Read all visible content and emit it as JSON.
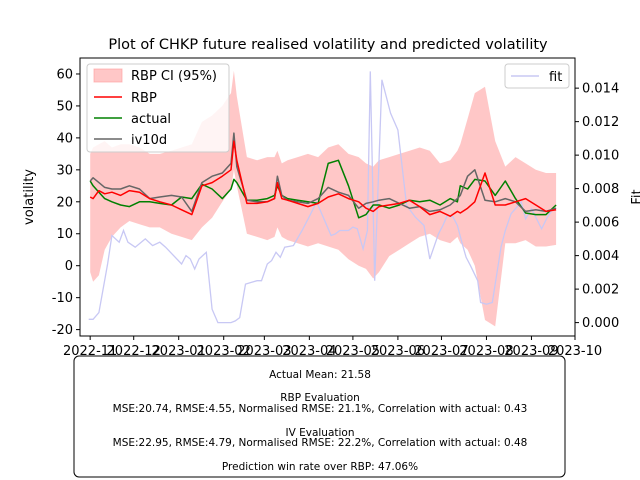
{
  "chart_data": {
    "type": "line",
    "title": "Plot of CHKP future realised volatility and predicted volatility",
    "ylabel": "volatility",
    "y2label": "Fit",
    "ylim": [
      -22,
      65
    ],
    "y2lim": [
      -0.0008,
      0.0158
    ],
    "xlim": [
      "2022-10-25",
      "2023-10-01"
    ],
    "yticks": [
      -20,
      -10,
      0,
      10,
      20,
      30,
      40,
      50,
      60
    ],
    "y2ticks": [
      0.0,
      0.002,
      0.004,
      0.006,
      0.008,
      0.01,
      0.012,
      0.014
    ],
    "y2tick_labels": [
      "0.000",
      "0.002",
      "0.004",
      "0.006",
      "0.008",
      "0.010",
      "0.012",
      "0.014"
    ],
    "xticks": [
      "2022-11",
      "2022-12",
      "2023-01",
      "2023-02",
      "2023-03",
      "2023-04",
      "2023-05",
      "2023-06",
      "2023-07",
      "2023-08",
      "2023-09",
      "2023-10"
    ],
    "legend_left": {
      "placement": "upper left",
      "entries": [
        "RBP CI (95%)",
        "RBP",
        "actual",
        "iv10d"
      ]
    },
    "legend_right": {
      "placement": "upper right",
      "entries": [
        "fit"
      ]
    },
    "colors": {
      "ci": "#ff9999",
      "rbp": "#ff0000",
      "actual": "#008000",
      "iv10d": "#666666",
      "fit": "#c8c8f4"
    },
    "x": [
      "2022-11-01",
      "2022-11-03",
      "2022-11-07",
      "2022-11-11",
      "2022-11-16",
      "2022-11-22",
      "2022-11-28",
      "2022-12-05",
      "2022-12-12",
      "2022-12-19",
      "2022-12-27",
      "2023-01-03",
      "2023-01-10",
      "2023-01-17",
      "2023-01-24",
      "2023-01-31",
      "2023-02-06",
      "2023-02-08",
      "2023-02-10",
      "2023-02-17",
      "2023-02-24",
      "2023-03-03",
      "2023-03-08",
      "2023-03-10",
      "2023-03-13",
      "2023-03-17",
      "2023-03-24",
      "2023-03-31",
      "2023-04-07",
      "2023-04-14",
      "2023-04-21",
      "2023-04-28",
      "2023-05-05",
      "2023-05-10",
      "2023-05-15",
      "2023-05-19",
      "2023-05-26",
      "2023-06-02",
      "2023-06-09",
      "2023-06-16",
      "2023-06-23",
      "2023-06-30",
      "2023-07-07",
      "2023-07-12",
      "2023-07-14",
      "2023-07-19",
      "2023-07-24",
      "2023-07-31",
      "2023-08-07",
      "2023-08-14",
      "2023-08-21",
      "2023-08-28",
      "2023-09-04",
      "2023-09-11",
      "2023-09-18"
    ],
    "series": [
      {
        "name": "RBP",
        "values": [
          21.5,
          21,
          23.5,
          22.5,
          23,
          22,
          23.5,
          23,
          21,
          20,
          19,
          17.5,
          16,
          25,
          26,
          28,
          30,
          39,
          33,
          19.5,
          19.5,
          20,
          21,
          26,
          21,
          20.5,
          19.5,
          18.5,
          19.5,
          21.5,
          22.5,
          21,
          20,
          18,
          17,
          18.5,
          19,
          19.5,
          20.5,
          18.5,
          16,
          17,
          15.5,
          17,
          16.5,
          18,
          20,
          29,
          19,
          19,
          20,
          21,
          19,
          17,
          17.5
        ]
      },
      {
        "name": "actual",
        "values": [
          26.5,
          25,
          23,
          21,
          20,
          19,
          18.5,
          20,
          20,
          19.5,
          19,
          21.5,
          21,
          25.5,
          24,
          21,
          24,
          27,
          26,
          20.5,
          20.5,
          21,
          22,
          25,
          22,
          21,
          20.5,
          20,
          19.5,
          32,
          33,
          25,
          15,
          16,
          19,
          19,
          18,
          19,
          20.5,
          20,
          20.5,
          19,
          21,
          20,
          25,
          24,
          27,
          26.5,
          22,
          26.5,
          21,
          16.5,
          16,
          16,
          19
        ]
      },
      {
        "name": "iv10d",
        "values": [
          26.5,
          27.5,
          26,
          24.5,
          24,
          24,
          25,
          24,
          21,
          21.5,
          22,
          21.5,
          17,
          26,
          28,
          29,
          32,
          41.5,
          31,
          20.5,
          20,
          20,
          21,
          28,
          22,
          20.5,
          20,
          19.5,
          21,
          24.5,
          23,
          22,
          18,
          19.5,
          20,
          20.5,
          21,
          19.5,
          18,
          18.5,
          17,
          17.5,
          19,
          21,
          22,
          28,
          30,
          20.5,
          20,
          21,
          20,
          17,
          17.5,
          17,
          18
        ]
      },
      {
        "name": "RBP CI lower",
        "values": [
          -2,
          -5,
          -3,
          5,
          9,
          12,
          14,
          13,
          12,
          12,
          10,
          9,
          8,
          12,
          15,
          20,
          24,
          30,
          25,
          10,
          9,
          8,
          9,
          12,
          9,
          8,
          7,
          6,
          7,
          6,
          5,
          2,
          0,
          -1,
          -4,
          -2,
          3,
          5,
          7,
          9,
          10,
          8,
          7,
          9,
          7,
          5,
          0,
          -17,
          -19,
          7,
          7,
          8,
          6,
          6,
          6.5
        ]
      },
      {
        "name": "RBP CI upper",
        "values": [
          35,
          37,
          38,
          39,
          37,
          38,
          38,
          37,
          35,
          35,
          36,
          37,
          38,
          45,
          47,
          50,
          54,
          61,
          53,
          34,
          33,
          34,
          34,
          36,
          32,
          33,
          34,
          35,
          34,
          37,
          38,
          35,
          34,
          32,
          31,
          33,
          34,
          35,
          36,
          37,
          36,
          32,
          33,
          36,
          38,
          46,
          54,
          56,
          39,
          31,
          34,
          32,
          30,
          29,
          29
        ]
      }
    ],
    "fit": {
      "name": "fit",
      "x": [
        "2022-10-31",
        "2022-11-03",
        "2022-11-07",
        "2022-11-13",
        "2022-11-16",
        "2022-11-21",
        "2022-11-24",
        "2022-11-27",
        "2022-12-02",
        "2022-12-09",
        "2022-12-14",
        "2022-12-19",
        "2022-12-23",
        "2023-01-03",
        "2023-01-06",
        "2023-01-09",
        "2023-01-12",
        "2023-01-15",
        "2023-01-20",
        "2023-01-24",
        "2023-01-28",
        "2023-02-01",
        "2023-02-06",
        "2023-02-09",
        "2023-02-12",
        "2023-02-16",
        "2023-02-20",
        "2023-02-24",
        "2023-02-27",
        "2023-03-03",
        "2023-03-06",
        "2023-03-09",
        "2023-03-12",
        "2023-03-15",
        "2023-03-21",
        "2023-03-27",
        "2023-04-02",
        "2023-04-06",
        "2023-04-11",
        "2023-04-16",
        "2023-04-19",
        "2023-04-22",
        "2023-04-28",
        "2023-05-01",
        "2023-05-04",
        "2023-05-08",
        "2023-05-11",
        "2023-05-13",
        "2023-05-16",
        "2023-05-21",
        "2023-05-27",
        "2023-06-01",
        "2023-06-07",
        "2023-06-13",
        "2023-06-19",
        "2023-06-23",
        "2023-06-29",
        "2023-07-02",
        "2023-07-05",
        "2023-07-09",
        "2023-07-12",
        "2023-07-15",
        "2023-07-18",
        "2023-07-21",
        "2023-07-26",
        "2023-07-28",
        "2023-08-01",
        "2023-08-05",
        "2023-08-11",
        "2023-08-14",
        "2023-08-18",
        "2023-08-25",
        "2023-08-28",
        "2023-09-01",
        "2023-09-08",
        "2023-09-12",
        "2023-09-16"
      ],
      "y": [
        0.0002,
        0.0002,
        0.0006,
        0.0035,
        0.0052,
        0.0048,
        0.0055,
        0.0048,
        0.0045,
        0.005,
        0.0046,
        0.0048,
        0.0045,
        0.0035,
        0.004,
        0.0038,
        0.0032,
        0.0038,
        0.0042,
        0.0008,
        0.0,
        0.0,
        0.0,
        0.0001,
        0.0003,
        0.0023,
        0.0024,
        0.0025,
        0.0025,
        0.0035,
        0.0037,
        0.0042,
        0.0039,
        0.0045,
        0.0046,
        0.0055,
        0.0065,
        0.0072,
        0.0062,
        0.0052,
        0.0053,
        0.0055,
        0.0055,
        0.0057,
        0.0056,
        0.0044,
        0.0055,
        0.015,
        0.0025,
        0.0145,
        0.0125,
        0.0115,
        0.007,
        0.0063,
        0.0058,
        0.0038,
        0.0053,
        0.0058,
        0.0064,
        0.0063,
        0.0058,
        0.0048,
        0.0039,
        0.0034,
        0.0025,
        0.0012,
        0.0011,
        0.0012,
        0.0045,
        0.0055,
        0.0065,
        0.0072,
        0.0062,
        0.0068,
        0.0056,
        0.0063,
        0.0068
      ]
    }
  },
  "stats_box": {
    "actual_mean": "Actual Mean: 21.58",
    "rbp_heading": "RBP Evaluation",
    "rbp_metrics": "MSE:20.74, RMSE:4.55, Normalised RMSE: 21.1%, Correlation with actual: 0.43",
    "iv_heading": "IV Evaluation",
    "iv_metrics": "MSE:22.95, RMSE:4.79, Normalised RMSE: 22.2%, Correlation with actual: 0.48",
    "win_rate": "Prediction win rate over RBP: 47.06%"
  }
}
